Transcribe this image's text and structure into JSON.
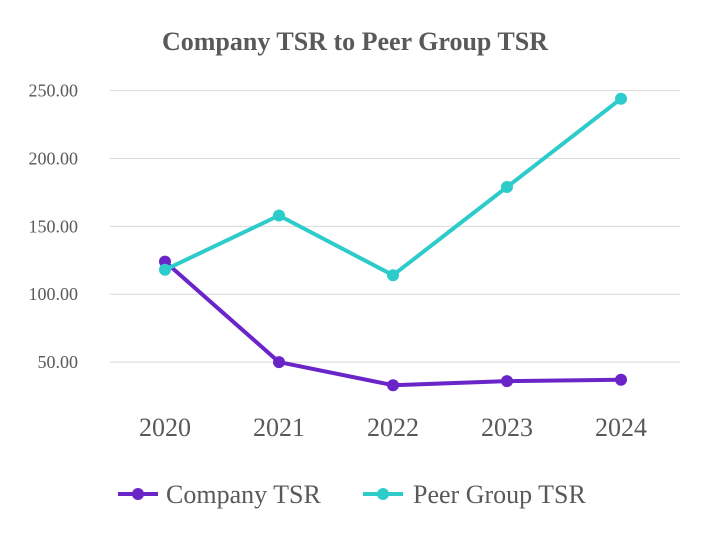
{
  "chart_data": {
    "type": "line",
    "title": "Company TSR to Peer Group TSR",
    "categories": [
      "2020",
      "2021",
      "2022",
      "2023",
      "2024"
    ],
    "yticks": [
      "50.00",
      "100.00",
      "150.00",
      "200.00",
      "250.00"
    ],
    "ytick_values": [
      50,
      100,
      150,
      200,
      250
    ],
    "ylim": [
      0,
      260
    ],
    "grid": true,
    "legend_position": "bottom",
    "series": [
      {
        "name": "Company TSR",
        "values": [
          124,
          50,
          33,
          36,
          37
        ],
        "color": "#6a25c9"
      },
      {
        "name": "Peer Group TSR",
        "values": [
          118,
          158,
          114,
          179,
          244
        ],
        "color": "#2ecbcb"
      }
    ]
  }
}
